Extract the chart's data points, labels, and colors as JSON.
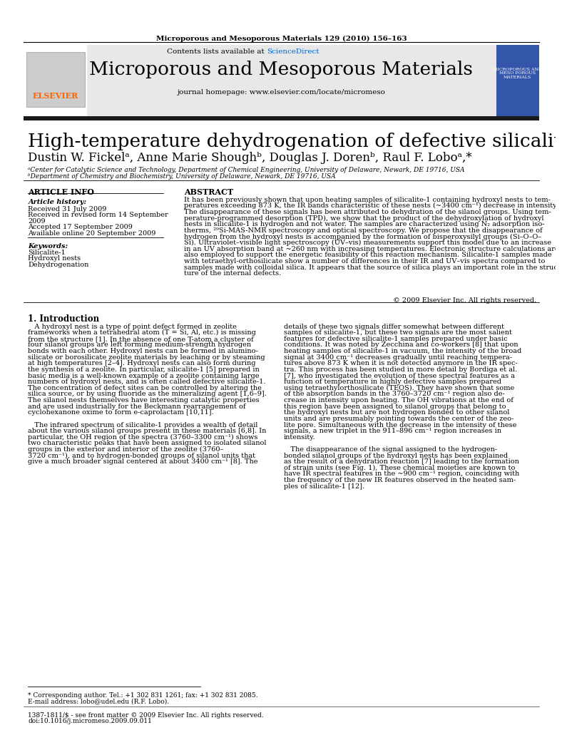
{
  "journal_header": "Microporous and Mesoporous Materials 129 (2010) 156–163",
  "contents_line": "Contents lists available at ScienceDirect",
  "sciencedirect_color": "#0066cc",
  "journal_title": "Microporous and Mesoporous Materials",
  "journal_homepage": "journal homepage: www.elsevier.com/locate/micromeso",
  "header_bg": "#e8e8e8",
  "black_bar_color": "#1a1a1a",
  "paper_title": "High-temperature dehydrogenation of defective silicalites",
  "authors": "Dustin W. Fickelᵃ, Anne Marie Shoughᵇ, Douglas J. Dorenᵇ, Raul F. Loboᵃ,*",
  "affil_a": "ᵃCenter for Catalytic Science and Technology, Department of Chemical Engineering, University of Delaware, Newark, DE 19716, USA",
  "affil_b": "ᵇDepartment of Chemistry and Biochemistry, University of Delaware, Newark, DE 19716, USA",
  "article_info_header": "ARTICLE INFO",
  "abstract_header": "ABSTRACT",
  "article_history_label": "Article history:",
  "received": "Received 31 July 2009",
  "received_revised_1": "Received in revised form 14 September",
  "received_revised_2": "2009",
  "accepted": "Accepted 17 September 2009",
  "available": "Available online 20 September 2009",
  "keywords_label": "Keywords:",
  "keywords": [
    "Silicalite-1",
    "Hydroxyl nests",
    "Dehydrogenation"
  ],
  "abstract_lines": [
    "It has been previously shown that upon heating samples of silicalite-1 containing hydroxyl nests to tem-",
    "peratures exceeding 873 K, the IR bands characteristic of these nests (~3400 cm⁻¹) decrease in intensity.",
    "The disappearance of these signals has been attributed to dehydration of the silanol groups. Using tem-",
    "perature-programmed desorption (TPD), we show that the product of the dehydroxylation of hydroxyl",
    "nests in silicalite-1 is hydrogen and not water. The samples are characterized using N₂ adsorption iso-",
    "therms, ²⁹Si-MAS-NMR spectroscopy and optical spectroscopy. We propose that the disappearance of",
    "hydrogen from the hydroxyl nests is accompanied by the formation of bisperoxysilyl groups (Si–O–O–",
    "Si). Ultraviolet–visible light spectroscopy (UV–vis) measurements support this model due to an increase",
    "in an UV absorption band at ~260 nm with increasing temperatures. Electronic structure calculations are",
    "also employed to support the energetic feasibility of this reaction mechanism. Silicalite-1 samples made",
    "with tetraethyl-orthosilicate show a number of differences in their IR and UV–vis spectra compared to",
    "samples made with colloidal silica. It appears that the source of silica plays an important role in the struc-",
    "ture of the internal defects."
  ],
  "copyright": "© 2009 Elsevier Inc. All rights reserved.",
  "section1_title": "1. Introduction",
  "intro_col1_lines": [
    "   A hydroxyl nest is a type of point defect formed in zeolite",
    "frameworks when a tetrahedral atom (T = Si, Al, etc.) is missing",
    "from the structure [1]. In the absence of one T-atom a cluster of",
    "four silanol groups are left forming medium-strength hydrogen",
    "bonds with each other. Hydroxyl nests can be formed in alumino-",
    "silicate or borosilicate zeolite materials by leaching or by steaming",
    "at high temperatures [2–4]. Hydroxyl nests can also form during",
    "the synthesis of a zeolite. In particular, silicalite-1 [5] prepared in",
    "basic media is a well-known example of a zeolite containing large",
    "numbers of hydroxyl nests, and is often called defective silicalite-1.",
    "The concentration of defect sites can be controlled by altering the",
    "silica source, or by using fluoride as the mineralizing agent [1,6–9].",
    "The silanol nests themselves have interesting catalytic properties",
    "and are used industrially for the Beckmann rearrangement of",
    "cyclohexanone oxime to form e-caprolactam [10,11].",
    "",
    "   The infrared spectrum of silicalite-1 provides a wealth of detail",
    "about the various silanol groups present in these materials [6,8]. In",
    "particular, the OH region of the spectra (3760–3300 cm⁻¹) shows",
    "two characteristic peaks that have been assigned to isolated silanol",
    "groups in the exterior and interior of the zeolite (3760–",
    "3720 cm⁻¹), and to hydrogen-bonded groups of silanol units that",
    "give a much broader signal centered at about 3400 cm⁻¹ [8]. The"
  ],
  "intro_col2_lines": [
    "details of these two signals differ somewhat between different",
    "samples of silicalite-1, but these two signals are the most salient",
    "features for defective silicalite-1 samples prepared under basic",
    "conditions. It was noted by Zecchina and co-workers [8] that upon",
    "heating samples of silicalite-1 in vacuum, the intensity of the broad",
    "signal at 3400 cm⁻¹ decreases gradually until reaching tempera-",
    "tures above 873 K when it is not detected anymore in the IR spec-",
    "tra. This process has been studied in more detail by Bordiga et al.",
    "[7], who investigated the evolution of these spectral features as a",
    "function of temperature in highly defective samples prepared",
    "using tetraethylorthosilicate (TEOS). They have shown that some",
    "of the absorption bands in the 3760–3720 cm⁻¹ region also de-",
    "crease in intensity upon heating. The OH vibrations at the end of",
    "this region have been assigned to silanol groups that belong to",
    "the hydroxyl nests but are not hydrogen bonded to other silanol",
    "units and are presumably pointing towards the center of the zeo-",
    "lite pore. Simultaneous with the decrease in the intensity of these",
    "signals, a new triplet in the 911–896 cm⁻¹ region increases in",
    "intensity.",
    "",
    "   The disappearance of the signal assigned to the hydrogen-",
    "bonded silanol groups of the hydroxyl nests has been explained",
    "as the result of a dehydration reaction [7] leading to the formation",
    "of strain units (see Fig. 1). These chemical moieties are known to",
    "have IR spectral features in the ~900 cm⁻¹ region, coinciding with",
    "the frequency of the new IR features observed in the heated sam-",
    "ples of silicalite-1 [12]."
  ],
  "footnote_star": "* Corresponding author. Tel.: +1 302 831 1261; fax: +1 302 831 2085.",
  "footnote_email": "E-mail address: lobo@udel.edu (R.F. Lobo).",
  "issn_line": "1387-1811/$ - see front matter © 2009 Elsevier Inc. All rights reserved.",
  "doi_line": "doi:10.1016/j.micromeso.2009.09.011",
  "elsevier_color": "#ff6600"
}
